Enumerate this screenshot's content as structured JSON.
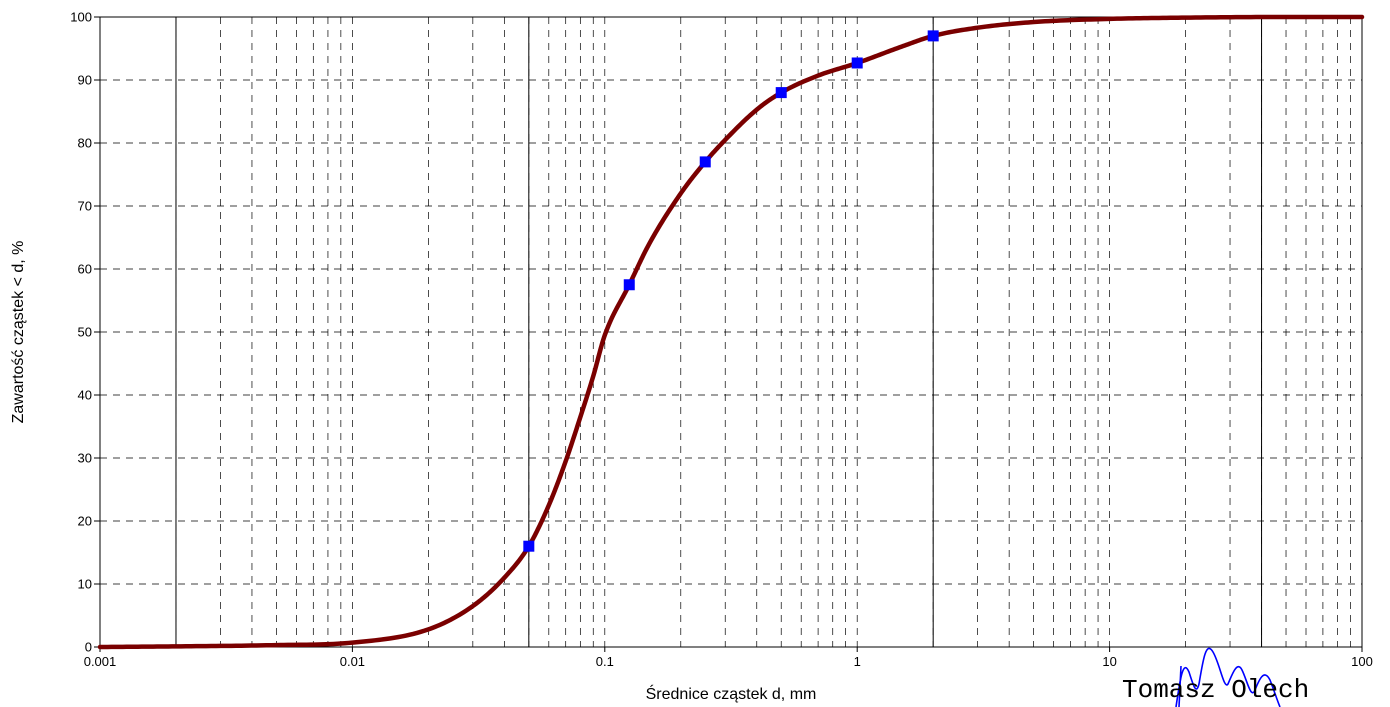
{
  "chart_data": {
    "type": "line",
    "title": "",
    "xlabel": "Średnice cząstek  d,  mm",
    "ylabel": "Zawartość cząstek < d,   %",
    "x_scale": "log",
    "xlim": [
      0.001,
      100
    ],
    "ylim": [
      0,
      100
    ],
    "x_ticks": [
      0.001,
      0.01,
      0.1,
      1,
      10,
      100
    ],
    "x_tick_labels": [
      "0.001",
      "0.01",
      "0.1",
      "1",
      "10",
      "100"
    ],
    "y_ticks": [
      0,
      10,
      20,
      30,
      40,
      50,
      60,
      70,
      80,
      90,
      100
    ],
    "y_tick_labels": [
      "0",
      "10",
      "20",
      "30",
      "40",
      "50",
      "60",
      "70",
      "80",
      "90",
      "100"
    ],
    "x_solid_lines": [
      0.002,
      0.05,
      2,
      40
    ],
    "grid": true,
    "legend": "none",
    "series": [
      {
        "type": "curve",
        "color": "#7a0000",
        "x": [
          0.001,
          0.002,
          0.005,
          0.01,
          0.02,
          0.03,
          0.04,
          0.05,
          0.06,
          0.07,
          0.08,
          0.09,
          0.1,
          0.125,
          0.15,
          0.2,
          0.25,
          0.3,
          0.4,
          0.5,
          0.7,
          1,
          1.5,
          2,
          3,
          5,
          10,
          20,
          50,
          100
        ],
        "y": [
          0,
          0.1,
          0.3,
          0.7,
          2.8,
          6.5,
          11,
          16,
          22.5,
          29.5,
          36.5,
          43,
          49.5,
          57.5,
          64,
          72,
          77,
          80.5,
          85.3,
          88,
          90.7,
          92.7,
          95.3,
          97,
          98.3,
          99.2,
          99.7,
          99.9,
          100,
          100
        ]
      },
      {
        "type": "markers",
        "color": "#0000ff",
        "x": [
          0.05,
          0.125,
          0.25,
          0.5,
          1,
          2
        ],
        "y": [
          16,
          57.5,
          77,
          88,
          92.7,
          97
        ]
      }
    ]
  },
  "signature": {
    "text": "Tomasz Olech",
    "ink_color": "#0000ff"
  }
}
